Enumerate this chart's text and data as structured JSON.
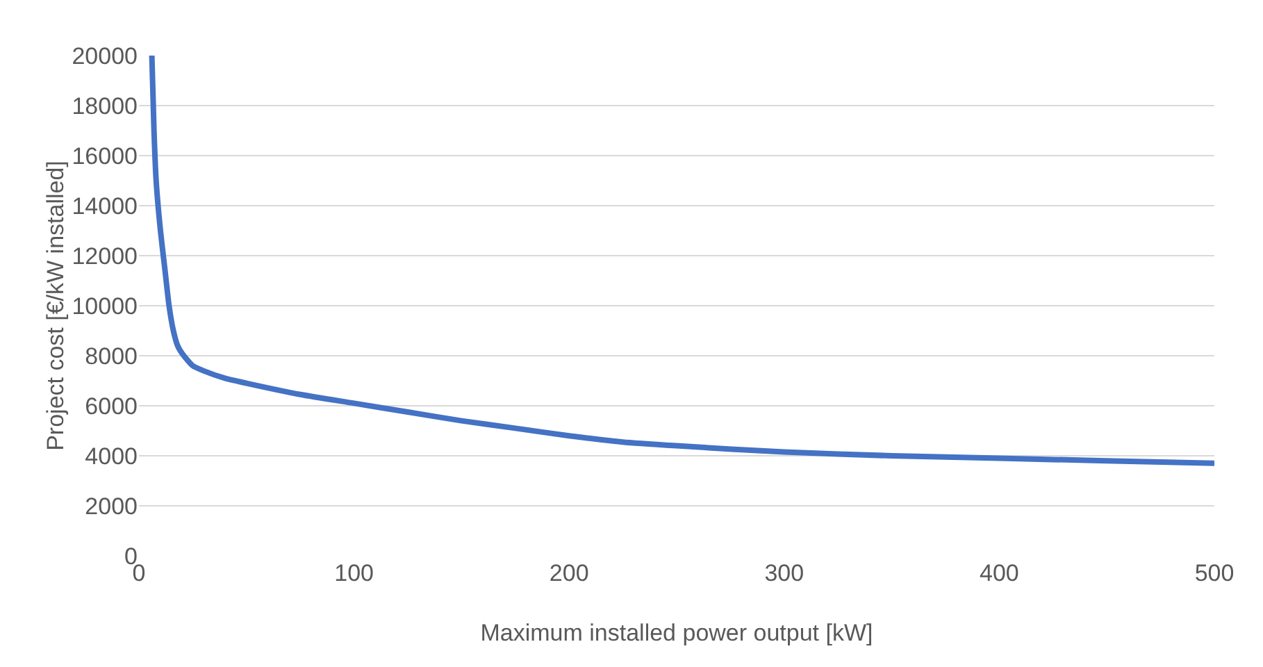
{
  "chart_data": {
    "type": "line",
    "xlabel": "Maximum installed power output [kW]",
    "ylabel": "Project cost [€/kW installed]",
    "x": [
      6,
      7,
      8,
      10,
      12,
      14,
      16,
      18,
      20,
      25,
      30,
      40,
      50,
      75,
      100,
      125,
      150,
      175,
      200,
      225,
      250,
      300,
      350,
      400,
      450,
      500
    ],
    "series": [
      {
        "color": "#4472c4",
        "values": [
          20000,
          17000,
          15000,
          13000,
          11500,
          10000,
          9000,
          8400,
          8100,
          7600,
          7400,
          7100,
          6900,
          6450,
          6100,
          5750,
          5400,
          5100,
          4800,
          4550,
          4400,
          4150,
          4000,
          3900,
          3800,
          3700
        ]
      }
    ],
    "xlim": [
      0,
      500
    ],
    "xticks": [
      0,
      100,
      200,
      300,
      400,
      500
    ],
    "ylim": [
      0,
      20000
    ],
    "yticks": [
      0,
      2000,
      4000,
      6000,
      8000,
      10000,
      12000,
      14000,
      16000,
      18000,
      20000
    ],
    "grid": "y",
    "legend": false,
    "marker": "none",
    "line_style": "solid"
  }
}
